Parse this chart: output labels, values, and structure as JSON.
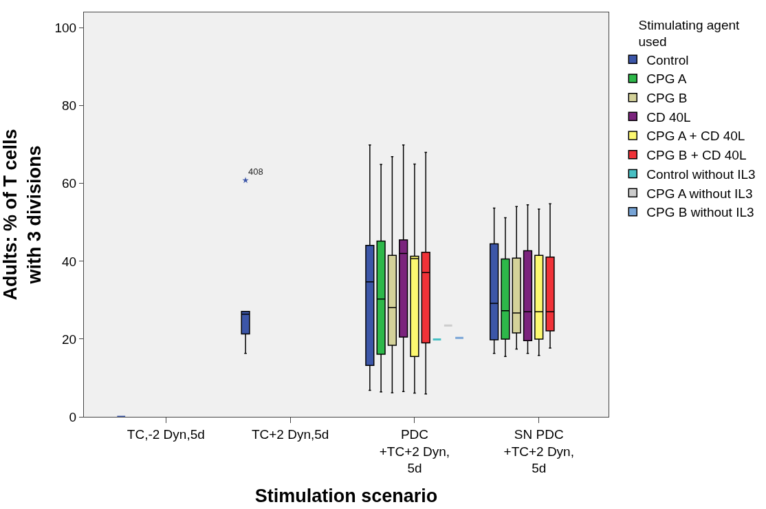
{
  "chart_data": {
    "type": "box",
    "xlabel": "Stimulation scenario",
    "ylabel": "Adults: % of T cells\nwith 3 divisions",
    "legend_title": "Stimulating agent\nused",
    "categories": [
      "TC,-2 Dyn,5d",
      "TC+2 Dyn,5d",
      "PDC\n+TC+2 Dyn,\n5d",
      "SN PDC\n+TC+2 Dyn,\n5d"
    ],
    "ylim": [
      0,
      104
    ],
    "yticks": [
      0,
      20,
      40,
      60,
      80,
      100
    ],
    "grid": false,
    "legend": "right",
    "series": [
      {
        "name": "Control",
        "color": "#3c56a8",
        "boxes": [
          {
            "low": 0,
            "q1": 0,
            "median": 0,
            "q3": 0,
            "high": 0
          },
          {
            "low": 16.3,
            "q1": 21.3,
            "median": 26.4,
            "q3": 27.1,
            "high": 27.1,
            "outliers": [
              60.8
            ]
          },
          {
            "low": 6.8,
            "q1": 13.2,
            "median": 34.7,
            "q3": 44.1,
            "high": 69.9
          },
          {
            "low": 16.3,
            "q1": 19.8,
            "median": 29.2,
            "q3": 44.5,
            "high": 53.7
          }
        ]
      },
      {
        "name": "CPG A",
        "color": "#2eb84a",
        "boxes": [
          null,
          null,
          {
            "low": 6.4,
            "q1": 16.1,
            "median": 30.3,
            "q3": 45.2,
            "high": 64.9
          },
          {
            "low": 15.5,
            "q1": 20.0,
            "median": 27.3,
            "q3": 40.6,
            "high": 51.2
          }
        ]
      },
      {
        "name": "CPG B",
        "color": "#d4d29a",
        "boxes": [
          null,
          null,
          {
            "low": 6.2,
            "q1": 18.4,
            "median": 28.1,
            "q3": 41.5,
            "high": 66.9
          },
          {
            "low": 17.4,
            "q1": 21.6,
            "median": 26.7,
            "q3": 40.8,
            "high": 54.1
          }
        ]
      },
      {
        "name": "CD 40L",
        "color": "#7b247d",
        "boxes": [
          null,
          null,
          {
            "low": 6.5,
            "q1": 20.5,
            "median": 42.0,
            "q3": 45.5,
            "high": 69.9
          },
          {
            "low": 16.3,
            "q1": 19.6,
            "median": 27.0,
            "q3": 42.7,
            "high": 54.5
          }
        ]
      },
      {
        "name": "CPG A + CD 40L",
        "color": "#fdf870",
        "boxes": [
          null,
          null,
          {
            "low": 6.1,
            "q1": 15.5,
            "median": 40.7,
            "q3": 41.3,
            "high": 65.0
          },
          {
            "low": 15.8,
            "q1": 20.0,
            "median": 27.0,
            "q3": 41.5,
            "high": 53.4
          }
        ]
      },
      {
        "name": "CPG B + CD 40L",
        "color": "#f03238",
        "boxes": [
          null,
          null,
          {
            "low": 5.9,
            "q1": 19.0,
            "median": 37.1,
            "q3": 42.3,
            "high": 68.0
          },
          {
            "low": 17.7,
            "q1": 22.1,
            "median": 27.0,
            "q3": 41.1,
            "high": 54.8
          }
        ]
      },
      {
        "name": "Control without IL3",
        "color": "#48c0c4",
        "boxes": [
          null,
          null,
          {
            "low": 19.9,
            "q1": 19.9,
            "median": 19.9,
            "q3": 19.9,
            "high": 19.9
          },
          null
        ]
      },
      {
        "name": "CPG A without IL3",
        "color": "#cccccc",
        "boxes": [
          null,
          null,
          {
            "low": 23.5,
            "q1": 23.5,
            "median": 23.5,
            "q3": 23.5,
            "high": 23.5
          },
          null
        ]
      },
      {
        "name": "CPG B without IL3",
        "color": "#77a4d6",
        "boxes": [
          null,
          null,
          {
            "low": 20.3,
            "q1": 20.3,
            "median": 20.3,
            "q3": 20.3,
            "high": 20.3
          },
          null
        ]
      }
    ],
    "annotations": [
      "408"
    ]
  }
}
